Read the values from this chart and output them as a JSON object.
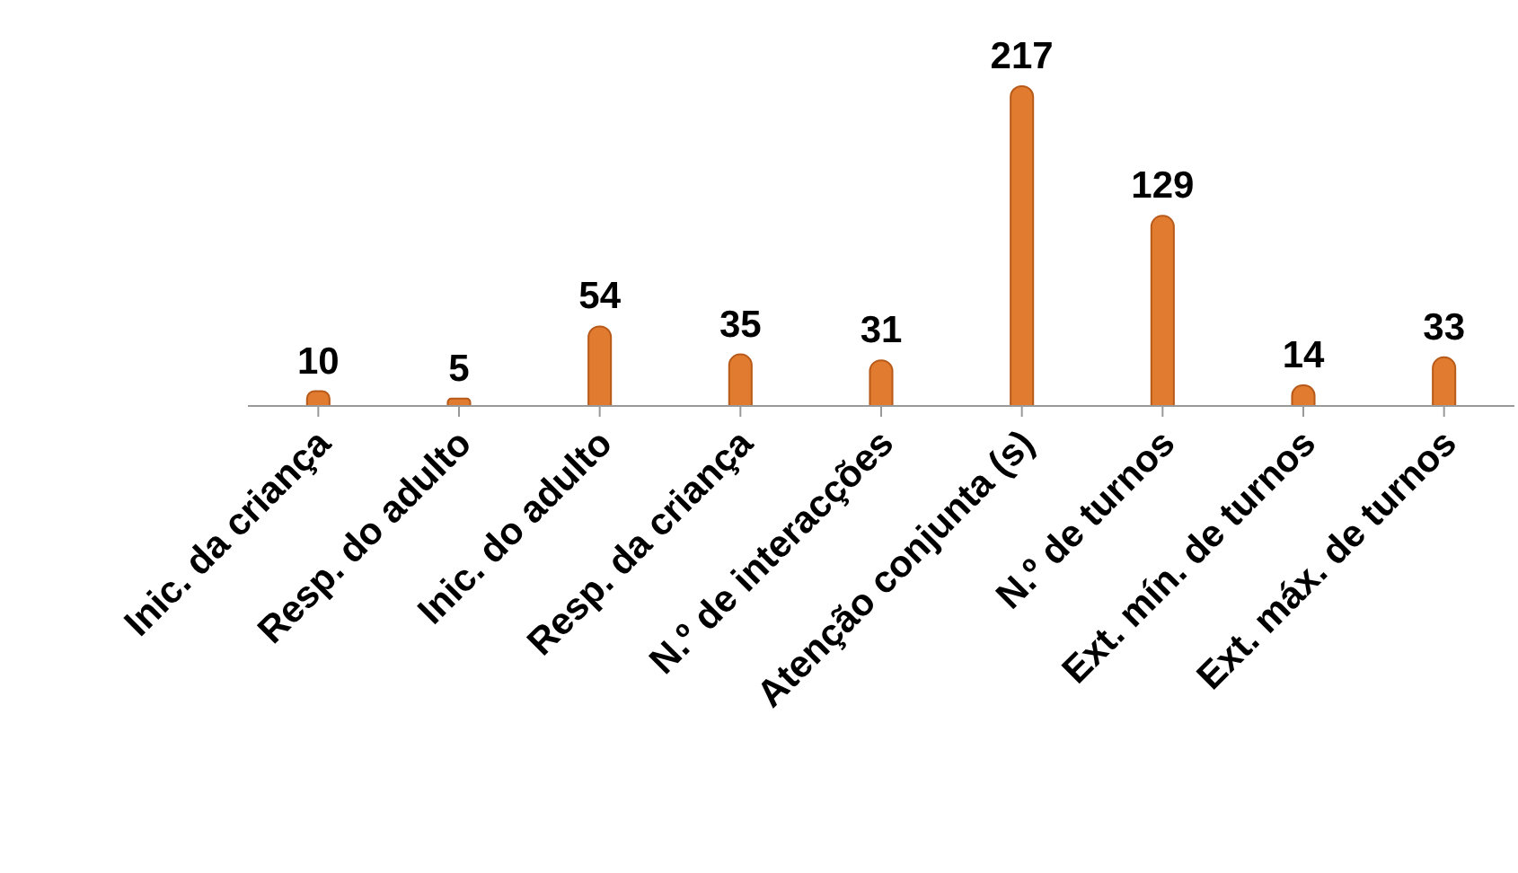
{
  "chart_data": {
    "type": "bar",
    "categories": [
      "Inic. da criança",
      "Resp. do adulto",
      "Inic. do adulto",
      "Resp. da criança",
      "N.º de interacções",
      "Atenção conjunta (s)",
      "N.º de turnos",
      "Ext. mín. de turnos",
      "Ext. máx. de turnos"
    ],
    "values": [
      10,
      5,
      54,
      35,
      31,
      217,
      129,
      14,
      33
    ],
    "color": "#e07b2f",
    "data_labels": true,
    "grid": false,
    "legend": false
  }
}
